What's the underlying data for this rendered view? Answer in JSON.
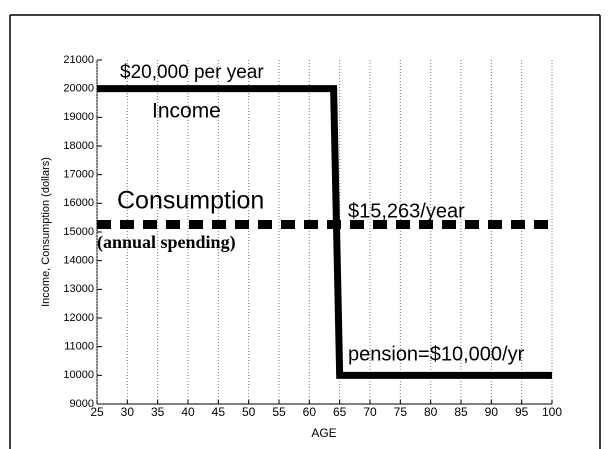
{
  "chart_data": {
    "type": "line",
    "xlabel": "AGE",
    "ylabel": "Income, Consumption (dollars)",
    "series": [
      {
        "name": "Income",
        "color": "#000000",
        "style": "solid",
        "x": [
          25,
          64,
          65,
          100
        ],
        "values": [
          20000,
          20000,
          10000,
          10000
        ]
      },
      {
        "name": "Consumption",
        "color": "#000000",
        "style": "dashed",
        "x": [
          25,
          100
        ],
        "values": [
          15263,
          15263
        ]
      }
    ],
    "annotations": [
      {
        "text": "$20,000 per year"
      },
      {
        "text": "Income"
      },
      {
        "text": "Consumption"
      },
      {
        "text": "(annual spending)"
      },
      {
        "text": "$15,263/year"
      },
      {
        "text": "pension=$10,000/yr"
      }
    ],
    "xlim": [
      25,
      100
    ],
    "xticks": [
      25,
      30,
      35,
      40,
      45,
      50,
      55,
      60,
      65,
      70,
      75,
      80,
      85,
      90,
      95,
      100
    ],
    "ylim": [
      9000,
      21000
    ],
    "yticks": [
      9000,
      10000,
      11000,
      12000,
      13000,
      14000,
      15000,
      16000,
      17000,
      18000,
      19000,
      20000,
      21000
    ],
    "grid": "x"
  }
}
